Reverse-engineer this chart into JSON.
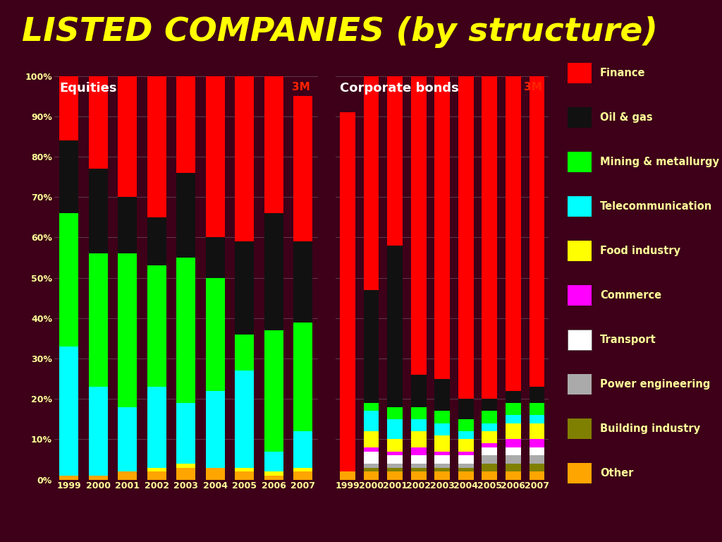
{
  "title": "LISTED COMPANIES (by structure)",
  "title_color": "#FFFF00",
  "title_fontsize": 34,
  "bg_color": "#3D0018",
  "line_color": "#FFFF00",
  "label_color": "#FFFF99",
  "years": [
    "1999",
    "2000",
    "2001",
    "2002",
    "2003",
    "2004",
    "2005",
    "2006",
    "2007"
  ],
  "categories": [
    "Other",
    "Building industry",
    "Power engineering",
    "Transport",
    "Commerce",
    "Food industry",
    "Telecommunication",
    "Mining & metallurgy",
    "Oil & gas",
    "Finance"
  ],
  "colors": [
    "#FFA500",
    "#808000",
    "#AAAAAA",
    "#FFFFFF",
    "#FF00FF",
    "#FFFF00",
    "#00FFFF",
    "#00FF00",
    "#111111",
    "#FF0000"
  ],
  "equities": {
    "Finance": [
      16,
      25,
      32,
      35,
      27,
      43,
      42,
      36,
      36
    ],
    "Oil & gas": [
      18,
      21,
      14,
      12,
      21,
      10,
      23,
      29,
      20
    ],
    "Mining & metallurgy": [
      33,
      33,
      38,
      30,
      36,
      28,
      9,
      30,
      27
    ],
    "Telecommunication": [
      32,
      22,
      16,
      20,
      15,
      19,
      24,
      5,
      9
    ],
    "Food industry": [
      0,
      0,
      0,
      1,
      1,
      0,
      1,
      1,
      1
    ],
    "Commerce": [
      0,
      0,
      0,
      0,
      0,
      0,
      0,
      0,
      0
    ],
    "Transport": [
      0,
      0,
      0,
      0,
      0,
      0,
      0,
      0,
      0
    ],
    "Power engineering": [
      0,
      0,
      0,
      0,
      0,
      0,
      0,
      0,
      0
    ],
    "Building industry": [
      0,
      0,
      0,
      0,
      0,
      0,
      0,
      0,
      0
    ],
    "Other": [
      1,
      1,
      2,
      2,
      3,
      3,
      2,
      1,
      2
    ]
  },
  "bonds": {
    "Finance": [
      89,
      54,
      42,
      74,
      75,
      80,
      80,
      78,
      78
    ],
    "Oil & gas": [
      0,
      28,
      40,
      8,
      8,
      5,
      3,
      3,
      4
    ],
    "Mining & metallurgy": [
      0,
      2,
      3,
      3,
      3,
      3,
      3,
      3,
      3
    ],
    "Telecommunication": [
      0,
      5,
      5,
      3,
      3,
      2,
      2,
      2,
      2
    ],
    "Food industry": [
      0,
      4,
      3,
      4,
      4,
      3,
      3,
      4,
      4
    ],
    "Commerce": [
      0,
      1,
      1,
      2,
      1,
      1,
      1,
      2,
      2
    ],
    "Transport": [
      0,
      3,
      2,
      2,
      2,
      2,
      2,
      2,
      2
    ],
    "Power engineering": [
      0,
      1,
      1,
      1,
      1,
      1,
      2,
      2,
      2
    ],
    "Building industry": [
      0,
      1,
      1,
      1,
      1,
      1,
      2,
      2,
      2
    ],
    "Other": [
      2,
      2,
      2,
      2,
      2,
      2,
      2,
      2,
      2
    ]
  },
  "chart1_label": "Equities",
  "chart2_label": "Corporate bonds",
  "note_label": "3M",
  "note_color": "#FF2200",
  "legend_labels": [
    "Finance",
    "Oil & gas",
    "Mining & metallurgy",
    "Telecommunication",
    "Food industry",
    "Commerce",
    "Transport",
    "Power engineering",
    "Building industry",
    "Other"
  ],
  "legend_colors": [
    "#FF0000",
    "#111111",
    "#00FF00",
    "#00FFFF",
    "#FFFF00",
    "#FF00FF",
    "#FFFFFF",
    "#AAAAAA",
    "#808000",
    "#FFA500"
  ]
}
